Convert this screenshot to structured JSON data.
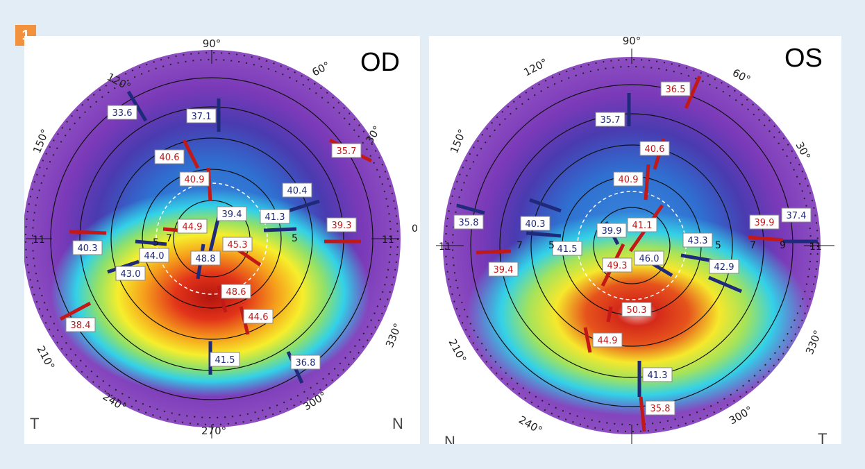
{
  "figure_number": "1",
  "od": {
    "title": "OD",
    "degrees": {
      "d90": "90°",
      "d60": "60°",
      "d30": "30°",
      "d120": "120°",
      "d150": "150°",
      "d210": "210°",
      "d240": "240°",
      "d270": "270°",
      "d300": "300°",
      "d330": "330°"
    },
    "corners": {
      "left": "T",
      "right": "N"
    },
    "ring_marks": {
      "left11": "11",
      "right11": "11",
      "r5a": "5",
      "r5b": "5",
      "r7": "7",
      "zero": "0"
    },
    "readings": {
      "r336": "33.6",
      "r371": "37.1",
      "r357": "35.7",
      "r406": "40.6",
      "r409": "40.9",
      "r404": "40.4",
      "r394": "39.4",
      "r413": "41.3",
      "r393": "39.3",
      "r403": "40.3",
      "r449": "44.9",
      "r453": "45.3",
      "r440": "44.0",
      "r488": "48.8",
      "r430": "43.0",
      "r486": "48.6",
      "r446": "44.6",
      "r384": "38.4",
      "r415": "41.5",
      "r368": "36.8"
    }
  },
  "os": {
    "title": "OS",
    "degrees": {
      "d90": "90°",
      "d60": "60°",
      "d30": "30°",
      "d120": "120°",
      "d150": "150°",
      "d210": "210°",
      "d240": "240°",
      "d300": "300°",
      "d330": "330°"
    },
    "corners": {
      "left": "N",
      "right": "T"
    },
    "ring_marks": {
      "left11": "11",
      "right11": "11",
      "l7": "7",
      "l5": "5",
      "r7": "7",
      "r5": "5",
      "r9": "9"
    },
    "readings": {
      "r365": "36.5",
      "r357": "35.7",
      "r406": "40.6",
      "r409": "40.9",
      "r358a": "35.8",
      "r403": "40.3",
      "r399a": "39.9",
      "r411": "41.1",
      "r399b": "39.9",
      "r374": "37.4",
      "r415": "41.5",
      "r394": "39.4",
      "r493": "49.3",
      "r460": "46.0",
      "r433": "43.3",
      "r429": "42.9",
      "r503": "50.3",
      "r449": "44.9",
      "r413": "41.3",
      "r358b": "35.8"
    }
  },
  "colors": {
    "red_label": "#cc1f1f",
    "blue_label": "#1f2a7a",
    "accent": "#f3923d",
    "background": "#e3edf5"
  }
}
